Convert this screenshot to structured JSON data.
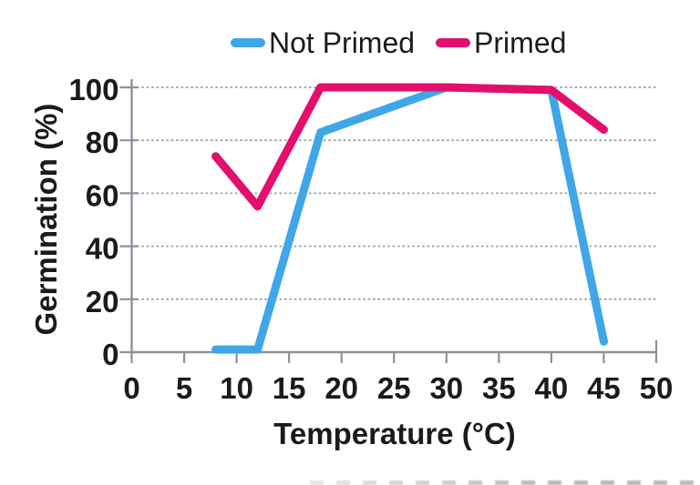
{
  "chart_data": {
    "type": "line",
    "title": "",
    "xlabel": "Temperature (°C)",
    "ylabel": "Germination (%)",
    "xlim": [
      0,
      50
    ],
    "ylim": [
      0,
      100
    ],
    "x_ticks": [
      0,
      5,
      10,
      15,
      20,
      25,
      30,
      35,
      40,
      45,
      50
    ],
    "y_ticks": [
      0,
      20,
      40,
      60,
      80,
      100
    ],
    "grid": "horizontal dashed gridlines at each y tick",
    "legend_position": "top-center",
    "series": [
      {
        "name": "Not Primed",
        "color": "#3FA7E8",
        "x": [
          8,
          12,
          18,
          30,
          40,
          45
        ],
        "y": [
          1,
          1,
          83,
          100,
          99,
          4
        ]
      },
      {
        "name": "Primed",
        "color": "#E2106C",
        "x": [
          8,
          12,
          18,
          30,
          40,
          45
        ],
        "y": [
          74,
          55,
          100,
          100,
          99,
          84
        ]
      }
    ]
  },
  "colors": {
    "axis": "#8A9299",
    "gridline": "#9BA1A6",
    "text": "#1B1B1B",
    "background": "#FFFFFF"
  }
}
